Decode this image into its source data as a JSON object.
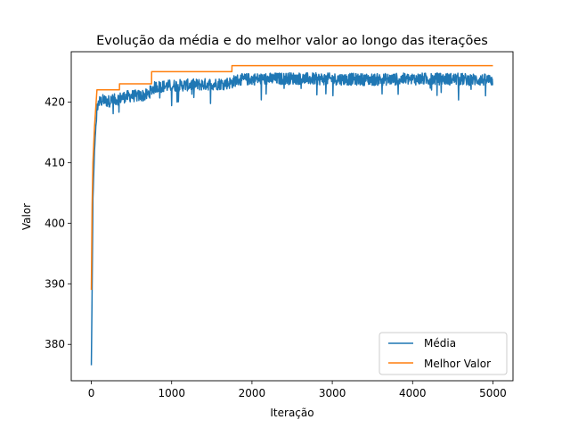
{
  "chart_data": {
    "type": "line",
    "title": "Evolução da média e do melhor valor ao longo das iterações",
    "xlabel": "Iteração",
    "ylabel": "Valor",
    "xlim": [
      -250,
      5250
    ],
    "ylim": [
      374,
      428.3
    ],
    "xticks": [
      0,
      1000,
      2000,
      3000,
      4000,
      5000
    ],
    "yticks": [
      380,
      390,
      400,
      410,
      420
    ],
    "grid": false,
    "legend_position": "lower-right",
    "series": [
      {
        "name": "Média",
        "color": "#1f77b4",
        "x": [
          0,
          10,
          20,
          40,
          60,
          80,
          100,
          150,
          200,
          300,
          350,
          400,
          500,
          600,
          700,
          750,
          800,
          900,
          1000,
          1200,
          1400,
          1600,
          1750,
          1800,
          2000,
          2200,
          2500,
          2800,
          3000,
          3500,
          4000,
          4500,
          5000
        ],
        "y": [
          376.5,
          389,
          404,
          412,
          417,
          419.5,
          420,
          420.3,
          420.1,
          420.4,
          420.6,
          420.8,
          421,
          421,
          421.2,
          422,
          422.5,
          422.6,
          422.7,
          422.8,
          422.9,
          423,
          423.2,
          423.6,
          423.8,
          423.8,
          423.9,
          423.8,
          423.8,
          423.7,
          423.8,
          423.8,
          423.6
        ],
        "noise": 1.0
      },
      {
        "name": "Melhor Valor",
        "color": "#ff7f0e",
        "x": [
          0,
          10,
          20,
          40,
          60,
          70,
          350,
          351,
          750,
          751,
          1750,
          1751,
          5000
        ],
        "y": [
          389,
          403,
          410,
          416,
          420,
          422,
          422,
          423,
          423,
          425,
          425,
          426,
          426
        ]
      }
    ]
  }
}
